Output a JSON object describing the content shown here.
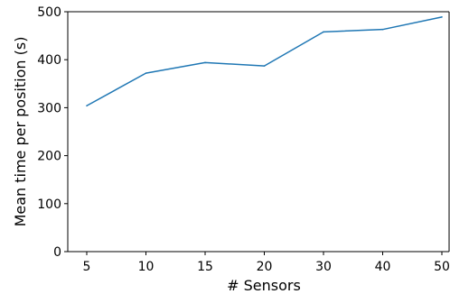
{
  "chart_data": {
    "type": "line",
    "title": "",
    "xlabel": "# Sensors",
    "ylabel": "Mean time per position (s)",
    "categories": [
      "5",
      "10",
      "15",
      "20",
      "30",
      "40",
      "50"
    ],
    "series": [
      {
        "values": [
          304,
          372,
          394,
          387,
          458,
          463,
          489
        ]
      }
    ],
    "ylim": [
      0,
      500
    ],
    "yticks": [
      "0",
      "100",
      "200",
      "300",
      "400",
      "500"
    ],
    "grid": false,
    "legend": "none",
    "colors": {
      "line": "#1f77b4",
      "axis": "#000000"
    }
  }
}
